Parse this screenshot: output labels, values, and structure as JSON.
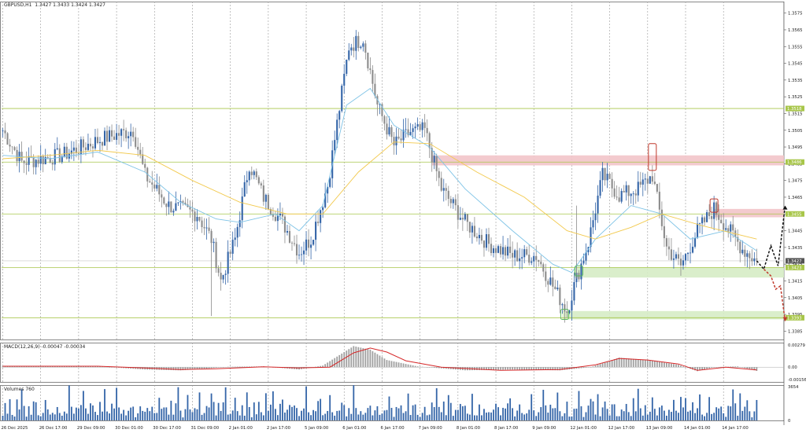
{
  "window": {
    "symbol": "GBPUSD,H1",
    "ohlc": "1.3427 1.3433 1.3424 1.3427"
  },
  "colors": {
    "bull": "#3465a8",
    "bear": "#8c8c8c",
    "ma_fast": "#7ec3e6",
    "ma_slow": "#f2c94c",
    "level": "#a8c64a",
    "resistance_zone": "#f2c4c9",
    "support_zone": "#d6ecc5",
    "macd_signal": "#d62728",
    "scenario_up": "#111111",
    "scenario_down": "#c0392b"
  },
  "chart_data": [
    {
      "type": "candlestick",
      "title": "GBPUSD,H1",
      "ylim": [
        1.338,
        1.358
      ],
      "y_ticks": [
        "1.3575",
        "1.3565",
        "1.3555",
        "1.3545",
        "1.3535",
        "1.3525",
        "1.3515",
        "1.3505",
        "1.3495",
        "1.3485",
        "1.3475",
        "1.3465",
        "1.3455",
        "1.3445",
        "1.3435",
        "1.3425",
        "1.3415",
        "1.3405",
        "1.3395",
        "1.3385"
      ],
      "x_labels": [
        "26 Dec 2025",
        "26 Dec 17:00",
        "29 Dec 09:00",
        "30 Dec 01:00",
        "30 Dec 17:00",
        "31 Dec 09:00",
        "2 Jan 01:00",
        "2 Jan 17:00",
        "5 Jan 09:00",
        "6 Jan 01:00",
        "6 Jan 17:00",
        "7 Jan 09:00",
        "8 Jan 01:00",
        "8 Jan 17:00",
        "9 Jan 09:00",
        "12 Jan 01:00",
        "12 Jan 17:00",
        "13 Jan 09:00",
        "14 Jan 01:00",
        "14 Jan 17:00"
      ],
      "key_points": [
        {
          "x": 0,
          "y": 1.3505
        },
        {
          "x": 8,
          "y": 1.3486
        },
        {
          "x": 25,
          "y": 1.349
        },
        {
          "x": 42,
          "y": 1.35
        },
        {
          "x": 55,
          "y": 1.3505
        },
        {
          "x": 60,
          "y": 1.3478
        },
        {
          "x": 70,
          "y": 1.346
        },
        {
          "x": 82,
          "y": 1.3455
        },
        {
          "x": 88,
          "y": 1.344
        },
        {
          "x": 92,
          "y": 1.3415
        },
        {
          "x": 98,
          "y": 1.344
        },
        {
          "x": 104,
          "y": 1.3485
        },
        {
          "x": 110,
          "y": 1.3465
        },
        {
          "x": 118,
          "y": 1.345
        },
        {
          "x": 125,
          "y": 1.3432
        },
        {
          "x": 130,
          "y": 1.344
        },
        {
          "x": 137,
          "y": 1.3472
        },
        {
          "x": 146,
          "y": 1.3555
        },
        {
          "x": 152,
          "y": 1.356
        },
        {
          "x": 158,
          "y": 1.352
        },
        {
          "x": 165,
          "y": 1.3496
        },
        {
          "x": 172,
          "y": 1.3504
        },
        {
          "x": 178,
          "y": 1.3505
        },
        {
          "x": 185,
          "y": 1.347
        },
        {
          "x": 195,
          "y": 1.345
        },
        {
          "x": 205,
          "y": 1.3437
        },
        {
          "x": 215,
          "y": 1.343
        },
        {
          "x": 225,
          "y": 1.343
        },
        {
          "x": 232,
          "y": 1.3412
        },
        {
          "x": 238,
          "y": 1.3397
        },
        {
          "x": 241,
          "y": 1.3412
        },
        {
          "x": 247,
          "y": 1.3438
        },
        {
          "x": 253,
          "y": 1.3478
        },
        {
          "x": 260,
          "y": 1.3466
        },
        {
          "x": 268,
          "y": 1.347
        },
        {
          "x": 274,
          "y": 1.3478
        },
        {
          "x": 280,
          "y": 1.3435
        },
        {
          "x": 286,
          "y": 1.3424
        },
        {
          "x": 293,
          "y": 1.3445
        },
        {
          "x": 300,
          "y": 1.3458
        },
        {
          "x": 305,
          "y": 1.3448
        },
        {
          "x": 312,
          "y": 1.3434
        },
        {
          "x": 318,
          "y": 1.3427
        }
      ],
      "ma_fast_points": [
        [
          0,
          1.349
        ],
        [
          20,
          1.3488
        ],
        [
          40,
          1.3492
        ],
        [
          60,
          1.348
        ],
        [
          75,
          1.3462
        ],
        [
          90,
          1.3452
        ],
        [
          100,
          1.345
        ],
        [
          115,
          1.3455
        ],
        [
          125,
          1.3445
        ],
        [
          135,
          1.346
        ],
        [
          145,
          1.352
        ],
        [
          155,
          1.353
        ],
        [
          165,
          1.3508
        ],
        [
          180,
          1.3495
        ],
        [
          195,
          1.347
        ],
        [
          215,
          1.3445
        ],
        [
          232,
          1.3425
        ],
        [
          240,
          1.342
        ],
        [
          250,
          1.344
        ],
        [
          265,
          1.346
        ],
        [
          278,
          1.3455
        ],
        [
          290,
          1.344
        ],
        [
          305,
          1.3445
        ],
        [
          318,
          1.3433
        ]
      ],
      "ma_slow_points": [
        [
          0,
          1.3488
        ],
        [
          20,
          1.349
        ],
        [
          40,
          1.3493
        ],
        [
          60,
          1.349
        ],
        [
          80,
          1.3475
        ],
        [
          100,
          1.3462
        ],
        [
          120,
          1.3455
        ],
        [
          135,
          1.3455
        ],
        [
          150,
          1.348
        ],
        [
          165,
          1.3498
        ],
        [
          180,
          1.3497
        ],
        [
          200,
          1.348
        ],
        [
          220,
          1.3465
        ],
        [
          238,
          1.3445
        ],
        [
          250,
          1.344
        ],
        [
          265,
          1.3447
        ],
        [
          278,
          1.3455
        ],
        [
          295,
          1.3448
        ],
        [
          318,
          1.344
        ]
      ],
      "levels": [
        {
          "price": 1.3518,
          "label": "1.3518"
        },
        {
          "price": 1.3486,
          "label": "1.3486"
        },
        {
          "price": 1.3455,
          "label": "1.3455"
        },
        {
          "price": 1.3423,
          "label": "1.3423"
        },
        {
          "price": 1.3393,
          "label": "1.3393"
        }
      ],
      "current_price": {
        "price": 1.3427,
        "label": "1.3427"
      },
      "resistance_zones": [
        {
          "from": 1.3484,
          "to": 1.349,
          "start_x": 181
        },
        {
          "from": 1.3453,
          "to": 1.3458,
          "start_x": 300
        }
      ],
      "support_zones": [
        {
          "from": 1.3417,
          "to": 1.3423,
          "start_x": 241
        },
        {
          "from": 1.3392,
          "to": 1.3397,
          "start_x": 236
        }
      ],
      "highlight_boxes": [
        {
          "x": 274,
          "price_from": 1.3481,
          "price_to": 1.3497
        },
        {
          "x": 300,
          "price_from": 1.3456,
          "price_to": 1.3464
        },
        {
          "x": 243,
          "price_from": 1.3418,
          "price_to": 1.3424
        },
        {
          "x": 237,
          "price_from": 1.3392,
          "price_to": 1.3398
        }
      ],
      "scenario_up": [
        [
          318,
          1.3427
        ],
        [
          321,
          1.3422
        ],
        [
          324,
          1.3436
        ],
        [
          327,
          1.3424
        ],
        [
          330,
          1.346
        ]
      ],
      "scenario_down": [
        [
          321,
          1.3422
        ],
        [
          324,
          1.3418
        ],
        [
          326,
          1.341
        ],
        [
          328,
          1.3412
        ],
        [
          330,
          1.3391
        ]
      ]
    },
    {
      "type": "bar",
      "title": "MACD(12,26,9) -0.00047 -0.00034",
      "ylim": [
        -0.00156,
        0.00279
      ],
      "y_ticks": [
        "0.00279",
        "0.00",
        "-0.00156"
      ],
      "key_points": [
        [
          0,
          0.00012
        ],
        [
          40,
          0.0001
        ],
        [
          60,
          -0.0003
        ],
        [
          75,
          -0.0004
        ],
        [
          85,
          -0.0002
        ],
        [
          95,
          5e-05
        ],
        [
          110,
          0.0001
        ],
        [
          125,
          -0.0003
        ],
        [
          135,
          0.0002
        ],
        [
          148,
          0.00265
        ],
        [
          155,
          0.0022
        ],
        [
          162,
          0.0009
        ],
        [
          175,
          0.0001
        ],
        [
          195,
          -0.0004
        ],
        [
          215,
          -0.0003
        ],
        [
          235,
          -0.0004
        ],
        [
          248,
          0.0
        ],
        [
          260,
          0.0012
        ],
        [
          272,
          0.0009
        ],
        [
          285,
          0.0003
        ],
        [
          293,
          -0.0005
        ],
        [
          300,
          0.0
        ],
        [
          310,
          0.0001
        ],
        [
          318,
          -0.00047
        ]
      ],
      "signal_points": [
        [
          0,
          0.00012
        ],
        [
          40,
          0.00012
        ],
        [
          60,
          -0.0001
        ],
        [
          75,
          -0.0003
        ],
        [
          90,
          -0.0002
        ],
        [
          110,
          5e-05
        ],
        [
          125,
          -0.0001
        ],
        [
          138,
          0.0
        ],
        [
          148,
          0.0018
        ],
        [
          155,
          0.0024
        ],
        [
          162,
          0.0019
        ],
        [
          170,
          0.0008
        ],
        [
          185,
          0.0
        ],
        [
          210,
          -0.0004
        ],
        [
          235,
          -0.0003
        ],
        [
          250,
          0.0003
        ],
        [
          260,
          0.0011
        ],
        [
          272,
          0.0009
        ],
        [
          285,
          0.0004
        ],
        [
          293,
          -0.0004
        ],
        [
          305,
          0.0
        ],
        [
          318,
          -0.00034
        ]
      ]
    },
    {
      "type": "bar",
      "title": "Volumes 760",
      "ylim": [
        0,
        3654
      ],
      "y_ticks": [
        "3654",
        "0"
      ],
      "pattern": [
        900,
        1500,
        1100,
        2600,
        1300,
        700,
        1900,
        1200,
        3100,
        1600,
        800,
        2200,
        1000,
        1700,
        2800,
        1200,
        600,
        1400,
        2400,
        900
      ]
    }
  ]
}
